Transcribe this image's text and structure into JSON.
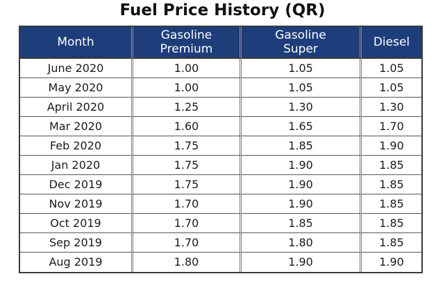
{
  "title": "Fuel Price History (QR)",
  "table": {
    "headers": {
      "month": "Month",
      "premium_line1": "Gasoline",
      "premium_line2": "Premium",
      "super_line1": "Gasoline",
      "super_line2": "Super",
      "diesel": "Diesel"
    },
    "rows": [
      {
        "month": "June 2020",
        "premium": "1.00",
        "super": "1.05",
        "diesel": "1.05"
      },
      {
        "month": "May 2020",
        "premium": "1.00",
        "super": "1.05",
        "diesel": "1.05"
      },
      {
        "month": "April 2020",
        "premium": "1.25",
        "super": "1.30",
        "diesel": "1.30"
      },
      {
        "month": "Mar 2020",
        "premium": "1.60",
        "super": "1.65",
        "diesel": "1.70"
      },
      {
        "month": "Feb 2020",
        "premium": "1.75",
        "super": "1.85",
        "diesel": "1.90"
      },
      {
        "month": "Jan 2020",
        "premium": "1.75",
        "super": "1.90",
        "diesel": "1.85"
      },
      {
        "month": "Dec 2019",
        "premium": "1.75",
        "super": "1.90",
        "diesel": "1.85"
      },
      {
        "month": "Nov 2019",
        "premium": "1.70",
        "super": "1.90",
        "diesel": "1.85"
      },
      {
        "month": "Oct 2019",
        "premium": "1.70",
        "super": "1.85",
        "diesel": "1.85"
      },
      {
        "month": "Sep 2019",
        "premium": "1.70",
        "super": "1.80",
        "diesel": "1.85"
      },
      {
        "month": "Aug 2019",
        "premium": "1.80",
        "super": "1.90",
        "diesel": "1.90"
      }
    ]
  },
  "colors": {
    "header_background": "#1e3d7b",
    "header_text": "#ffffff",
    "cell_text": "#1a1a1a"
  }
}
